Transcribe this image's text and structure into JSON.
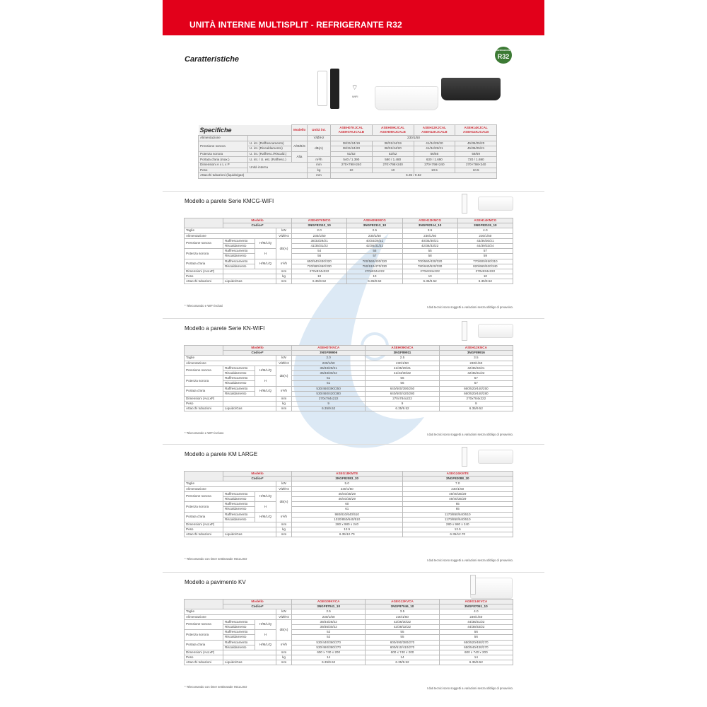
{
  "header": {
    "title": "UNITÀ INTERNE MULTISPLIT - REFRIGERANTE R32"
  },
  "section_title": "Caratteristiche",
  "badge": {
    "top": "REFRIGERANT",
    "main": "R32",
    "color": "#3c7a34"
  },
  "wifi_label": "WIFI",
  "accent": "#e2001a",
  "specs": {
    "title": "Specifiche",
    "modello": "Modello",
    "unita": "Unità int.",
    "models": [
      "ASEH07KJCAL ASEH07KJCALB",
      "ASEH09KJCAL ASEH09KJCALB",
      "ASEH12KJCAL ASEH12KJCALB",
      "ASEH14KJCAL ASEH14KJCALB"
    ],
    "rows": [
      {
        "label": "Alimentazione",
        "sub": "",
        "mode": "",
        "unit": "V/Ø/Hz",
        "values": [
          "230/1/50"
        ]
      },
      {
        "label": "Pressione sonora",
        "sub": "U. int. (Raffrescamento)",
        "mode": "A/M/B/S",
        "unit": "dB(A)",
        "values": [
          "38/31/24/19",
          "38/31/24/19",
          "41/34/25/20",
          "45/35/25/20"
        ]
      },
      {
        "label": "Pressione sonora",
        "sub": "U. int. (Riscaldamento)",
        "mode": "A/M/B/S",
        "unit": "dB(A)",
        "values": [
          "38/31/24/20",
          "38/31/24/20",
          "41/34/25/21",
          "45/35/25/21"
        ]
      },
      {
        "label": "Potenza sonora",
        "sub": "U. int. (Raffresc./Riscald.)",
        "mode": "Alta",
        "unit": "dB(A)",
        "values": [
          "51/52",
          "52/52",
          "56/56",
          "59/59"
        ]
      },
      {
        "label": "Portata d'aria (max.)",
        "sub": "U. int. / U. est. (Raffresc.)",
        "mode": "Alta",
        "unit": "m³/h",
        "values": [
          "540 / 1.390",
          "580 / 1.480",
          "630 / 1.690",
          "720 / 1.690"
        ]
      },
      {
        "label": "Dimensioni  A x L x P",
        "sub": "Unità interna",
        "unit": "mm",
        "values": [
          "270×798×240",
          "270×798×240",
          "270×798×240",
          "270×798×240"
        ]
      },
      {
        "label": "Peso",
        "sub": "Unità interna",
        "unit": "kg",
        "values": [
          "10",
          "10",
          "10.5",
          "10.5"
        ]
      },
      {
        "label": "Attacchi tubazioni (liquido/gas)",
        "unit": "mm",
        "values": [
          "6.35 / 9.52"
        ]
      }
    ]
  },
  "tables": [
    {
      "title_a": "Modello a pa",
      "title_b": "rete Serie KMCG-WIFI",
      "modello": "Modello",
      "codice": "Codice*",
      "models": [
        "ASEH07KMCG",
        "ASEH09KMCG",
        "ASEH12KMCG",
        "ASEH14KMCG"
      ],
      "codes": [
        "3NGF82112_10",
        "3NGF82113_10",
        "3NGF82114_10",
        "3NGF82115_10"
      ],
      "rows": [
        {
          "label": "Taglie",
          "unit": "kW",
          "values": [
            "2.0",
            "2.5",
            "3.5",
            "4.0"
          ]
        },
        {
          "label": "Alimentazione",
          "unit": "V/Ø/Hz",
          "values": [
            "230/1/50",
            "230/1/50",
            "230/1/50",
            "230/1/50"
          ]
        },
        {
          "label": "Pressione sonora",
          "sub": "Raffrescamento",
          "mode": "H/M/L/Q",
          "unit": "dB(A)",
          "values": [
            "38/33/29/21",
            "40/34/29/21",
            "40/35/30/21",
            "43/36/30/21"
          ]
        },
        {
          "label": "Pressione sonora",
          "sub": "Riscaldamento",
          "mode": "H/M/L/Q",
          "unit": "dB(A)",
          "values": [
            "41/35/31/22",
            "42/36/31/22",
            "42/38/33/22",
            "44/39/33/24"
          ]
        },
        {
          "label": "Potenza sonora",
          "sub": "Raffrescamento",
          "mode": "H",
          "unit": "dB(A)",
          "values": [
            "54",
            "55",
            "55",
            "57"
          ]
        },
        {
          "label": "Potenza sonora",
          "sub": "Riscaldamento",
          "mode": "H",
          "unit": "dB(A)",
          "values": [
            "56",
            "57",
            "58",
            "59"
          ]
        },
        {
          "label": "Portata d'aria",
          "sub": "Raffrescamento",
          "mode": "H/M/L/Q",
          "unit": "m³/h",
          "values": [
            "650/540/430/320",
            "700/560/430/320",
            "700/560/430/320",
            "770/600/450/310"
          ]
        },
        {
          "label": "Portata d'aria",
          "sub": "Riscaldamento",
          "mode": "H/M/L/Q",
          "unit": "m³/h",
          "values": [
            "720/580/460/330",
            "750/610/470/330",
            "780/640/520/330",
            "820/660/520/340"
          ]
        },
        {
          "label": "Dimensioni (AxLxP)",
          "sub": "",
          "unit": "mm",
          "values": [
            "270x834x222",
            "270x834x222",
            "270x834x222",
            "270x834x222"
          ]
        },
        {
          "label": "Peso",
          "sub": "",
          "unit": "kg",
          "values": [
            "10",
            "10",
            "10",
            "10"
          ]
        },
        {
          "label": "Attacchi tubazioni",
          "sub": "Liquido/Gas",
          "unit": "mm",
          "values": [
            "6.35/9.52",
            "6.35/9.52",
            "6.35/9.52",
            "6.35/9.52"
          ]
        }
      ],
      "note": "* Telecomando e WIFI inclusi",
      "disclaimer": "I dati tecnici sono soggetti a variazioni senza obbligo di preavviso."
    },
    {
      "title_a": "Modello a pa",
      "title_b": "rete Serie KN-WIFI",
      "modello": "Modello",
      "codice": "Codice*",
      "models": [
        "ASEH07KNCA",
        "ASEH09KNCA",
        "ASEH12KNCA"
      ],
      "codes": [
        "3NGF89906",
        "3NGF89911",
        "3NGF89916"
      ],
      "rows": [
        {
          "label": "Taglie",
          "unit": "kW",
          "values": [
            "2.0",
            "2.5",
            "3.5"
          ]
        },
        {
          "label": "Alimentazione",
          "unit": "V/Ø/Hz",
          "values": [
            "230/1/50",
            "230/1/50",
            "230/1/50"
          ]
        },
        {
          "label": "Pressione sonora",
          "sub": "Raffrescamento",
          "mode": "H/M/L/Q",
          "unit": "dB(A)",
          "values": [
            "36/33/29/21",
            "41/35/29/21",
            "42/36/32/21"
          ]
        },
        {
          "label": "Pressione sonora",
          "sub": "Riscaldamento",
          "mode": "H/M/L/Q",
          "unit": "dB(A)",
          "values": [
            "36/33/30/22",
            "41/34/30/22",
            "42/35/31/22"
          ]
        },
        {
          "label": "Potenza sonora",
          "sub": "Raffrescamento",
          "mode": "H",
          "unit": "dB(A)",
          "values": [
            "51",
            "56",
            "57"
          ]
        },
        {
          "label": "Potenza sonora",
          "sub": "Riscaldamento",
          "mode": "H",
          "unit": "dB(A)",
          "values": [
            "51",
            "56",
            "57"
          ]
        },
        {
          "label": "Portata d'aria",
          "sub": "Raffrescamento",
          "mode": "H/M/L/Q",
          "unit": "m³/h",
          "values": [
            "530/460/390/250",
            "640/500/390/250",
            "660/520/440/250"
          ]
        },
        {
          "label": "Portata d'aria",
          "sub": "Riscaldamento",
          "mode": "H/M/L/Q",
          "unit": "m³/h",
          "values": [
            "530/460/420/280",
            "640/500/420/280",
            "660/520/440/280"
          ]
        },
        {
          "label": "Dimensioni (AxLxP)",
          "sub": "",
          "unit": "mm",
          "values": [
            "270x784x222",
            "270x784x222",
            "270x784x222"
          ]
        },
        {
          "label": "Peso",
          "sub": "",
          "unit": "kg",
          "values": [
            "9",
            "9",
            "9"
          ]
        },
        {
          "label": "Attacchi tubazioni",
          "sub": "Liquido/Gas",
          "unit": "mm",
          "values": [
            "6.35/9.52",
            "6.35/9.52",
            "6.35/9.52"
          ]
        }
      ],
      "note": "* Telecomando e WIFI incluso",
      "disclaimer": "I dati tecnici sono soggetti a variazioni senza obbligo di preavviso."
    },
    {
      "title_a": "Modello a pa",
      "title_b": "rete KM LARGE",
      "modello": "Modello",
      "codice": "Codice*",
      "models": [
        "ASEG18KMTE",
        "ASEG24KMTE"
      ],
      "codes": [
        "3NGF82083_20",
        "3NGF82088_20"
      ],
      "rows": [
        {
          "label": "Taglie",
          "unit": "kW",
          "values": [
            "5.0",
            "7.0"
          ]
        },
        {
          "label": "Alimentazione",
          "unit": "V/Ø/Hz",
          "values": [
            "230/1/50",
            "230/1/50"
          ]
        },
        {
          "label": "Pressione sonora",
          "sub": "Raffrescamento",
          "mode": "H/M/L/Q",
          "unit": "dB(A)",
          "values": [
            "45/40/35/29",
            "49/40/35/29"
          ]
        },
        {
          "label": "Pressione sonora",
          "sub": "Riscaldamento",
          "mode": "H/M/L/Q",
          "unit": "dB(A)",
          "values": [
            "46/40/35/29",
            "49/40/35/29"
          ]
        },
        {
          "label": "Potenza sonora",
          "sub": "Raffrescamento",
          "mode": "H",
          "unit": "dB(A)",
          "values": [
            "60",
            "65"
          ]
        },
        {
          "label": "Potenza sonora",
          "sub": "Riscaldamento",
          "mode": "H",
          "unit": "dB(A)",
          "values": [
            "61",
            "65"
          ]
        },
        {
          "label": "Portata d'aria",
          "sub": "Raffrescamento",
          "mode": "H/M/L/Q",
          "unit": "m³/h",
          "values": [
            "980/810/640/510",
            "1170/850/640/510"
          ]
        },
        {
          "label": "Portata d'aria",
          "sub": "Riscaldamento",
          "mode": "H/M/L/Q",
          "unit": "m³/h",
          "values": [
            "1020/850/640/510",
            "1170/850/640/510"
          ]
        },
        {
          "label": "Dimensioni (AxLxP)",
          "sub": "",
          "unit": "mm",
          "values": [
            "280 x 980 x 240",
            "280 x 980 x 240"
          ]
        },
        {
          "label": "Peso",
          "sub": "",
          "unit": "kg",
          "values": [
            "12.5",
            "12.5"
          ]
        },
        {
          "label": "Attacchi tubazioni",
          "sub": "Liquido/Gas",
          "unit": "mm",
          "values": [
            "6.35/12.70",
            "6.35/12.70"
          ]
        }
      ],
      "note": "* Telecomando con timer settimanale INCLUSO",
      "disclaimer": "I dati tecnici sono soggetti a variazioni senza obbligo di preavviso."
    },
    {
      "title_a": "Modello a pa",
      "title_b": "vimento KV",
      "modello": "Modello",
      "codice": "Codice*",
      "models": [
        "AGEG09KVCA",
        "AGEG12KVCA",
        "AGEG14KVCA"
      ],
      "codes": [
        "3NGF87041_10",
        "3NGF87046_10",
        "3NGF87051_10"
      ],
      "rows": [
        {
          "label": "Taglie",
          "unit": "kW",
          "values": [
            "2.5",
            "3.5",
            "4.0"
          ]
        },
        {
          "label": "Alimentazione",
          "unit": "V/Ø/Hz",
          "values": [
            "230/1/50",
            "230/1/50",
            "230/1/50"
          ]
        },
        {
          "label": "Pressione sonora",
          "sub": "Raffrescamento",
          "mode": "H/M/L/Q",
          "unit": "dB(A)",
          "values": [
            "39/34/28/22",
            "42/36/30/22",
            "44/38/31/22"
          ]
        },
        {
          "label": "Pressione sonora",
          "sub": "Riscaldamento",
          "mode": "H/M/L/Q",
          "unit": "dB(A)",
          "values": [
            "39/35/30/22",
            "42/38/32/22",
            "44/39/33/22"
          ]
        },
        {
          "label": "Potenza sonora",
          "sub": "Raffrescamento",
          "mode": "H",
          "unit": "dB(A)",
          "values": [
            "52",
            "55",
            "56"
          ]
        },
        {
          "label": "Potenza sonora",
          "sub": "Riscaldamento",
          "mode": "H",
          "unit": "dB(A)",
          "values": [
            "52",
            "55",
            "56"
          ]
        },
        {
          "label": "Portata d'aria",
          "sub": "Raffrescamento",
          "mode": "H/M/L/Q",
          "unit": "m³/h",
          "values": [
            "530/440/360/270",
            "600/490/380/270",
            "650/520/480/270"
          ]
        },
        {
          "label": "Portata d'aria",
          "sub": "Riscaldamento",
          "mode": "H/M/L/Q",
          "unit": "m³/h",
          "values": [
            "530/460/380/270",
            "600/510/410/270",
            "650/540/430/270"
          ]
        },
        {
          "label": "Dimensioni (AxLxP)",
          "sub": "",
          "unit": "mm",
          "values": [
            "600 x 740 x 200",
            "600 x 740 x 200",
            "600 x 740 x 200"
          ]
        },
        {
          "label": "Peso",
          "sub": "",
          "unit": "kg",
          "values": [
            "14",
            "14",
            "14"
          ]
        },
        {
          "label": "Attacchi tubazioni",
          "sub": "Liquido/Gas",
          "unit": "mm",
          "values": [
            "6.35/9.52",
            "6.35/9.52",
            "6.35/9.52"
          ]
        }
      ],
      "note": "* Telecomando con timer settimanale INCLUSO",
      "disclaimer": "I dati tecnici sono soggetti a variazioni senza obbligo di preavviso."
    }
  ]
}
